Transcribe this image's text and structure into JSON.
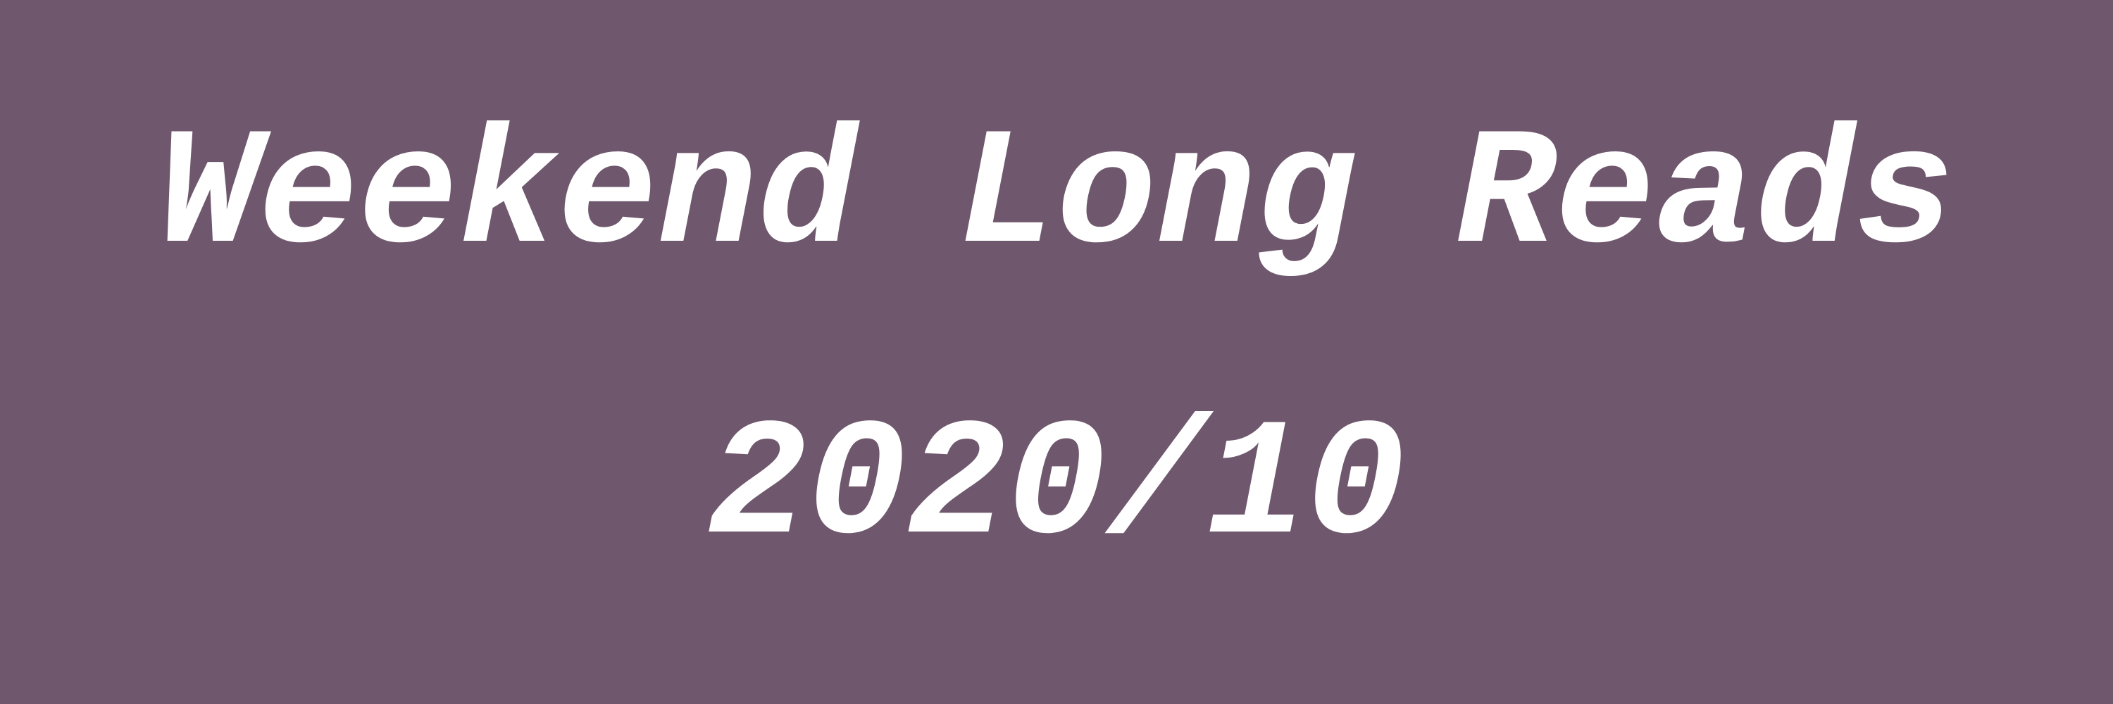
{
  "banner": {
    "title": "Weekend Long Reads",
    "date": "2020/10",
    "background_color": "#6f586d",
    "text_color": "#ffffff"
  }
}
